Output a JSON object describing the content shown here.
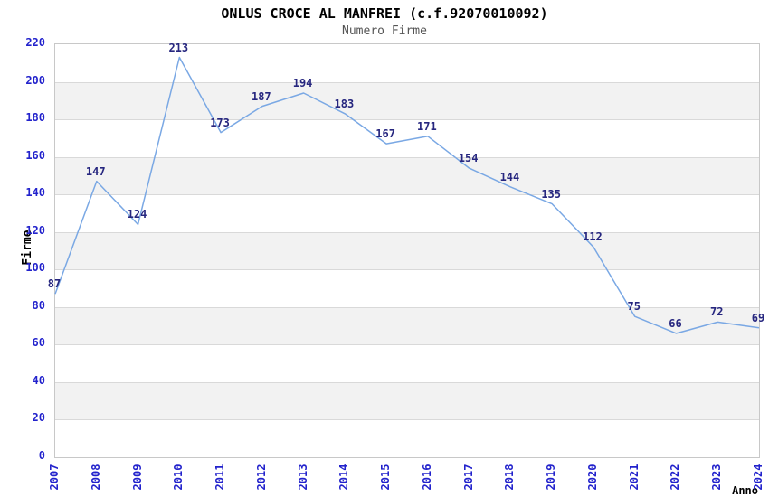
{
  "chart_data": {
    "type": "line",
    "title": "ONLUS CROCE AL MANFREI (c.f.92070010092)",
    "subtitle": "Numero Firme",
    "xlabel": "Anno",
    "ylabel": "Firme",
    "categories": [
      "2007",
      "2008",
      "2009",
      "2010",
      "2011",
      "2012",
      "2013",
      "2014",
      "2015",
      "2016",
      "2017",
      "2018",
      "2019",
      "2020",
      "2021",
      "2022",
      "2023",
      "2024"
    ],
    "series": [
      {
        "name": "Numero Firme",
        "values": [
          87,
          147,
          124,
          213,
          173,
          187,
          194,
          183,
          167,
          171,
          154,
          144,
          135,
          112,
          75,
          66,
          72,
          69
        ]
      }
    ],
    "ylim": [
      0,
      220
    ],
    "ytick_step": 20,
    "yticks": [
      0,
      20,
      40,
      60,
      80,
      100,
      120,
      140,
      160,
      180,
      200,
      220
    ],
    "grid": "alternating horizontal bands every 20 units, no vertical gridlines",
    "legend": "none",
    "point_markers": false,
    "point_labels": true,
    "colors": {
      "line": "#7AA8E4",
      "tick_label": "#2222CC",
      "point_label": "#26267F",
      "band_gray": "#F2F2F2",
      "band_white": "#FFFFFF",
      "gridline": "#D9D9D9",
      "plot_border": "#C8C8C8",
      "title": "#000000",
      "subtitle": "#555555",
      "axis_title": "#000000"
    }
  }
}
